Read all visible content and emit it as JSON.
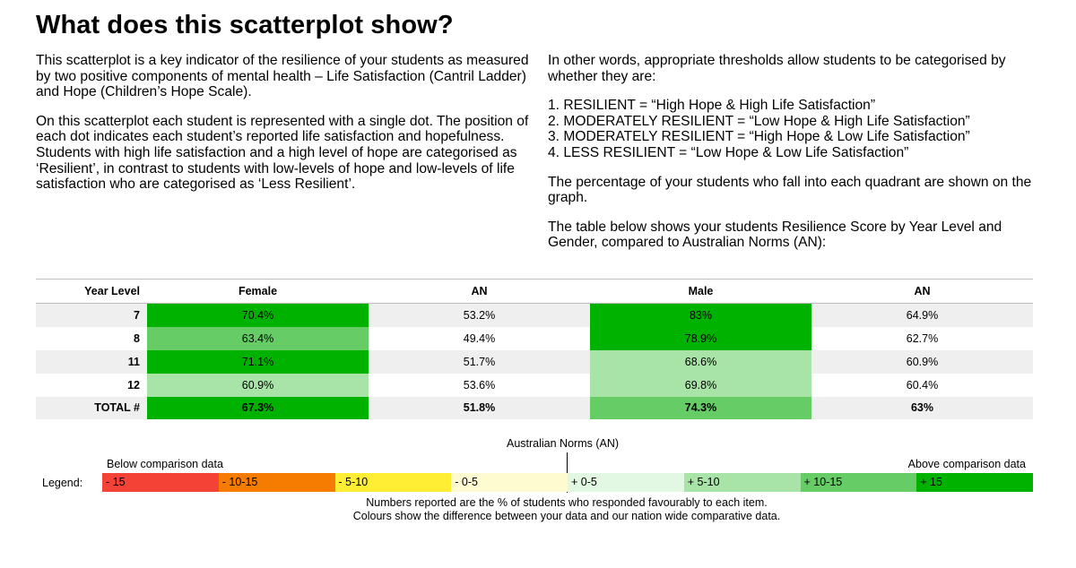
{
  "title": "What does this scatterplot show?",
  "left_column": {
    "p1": "This scatterplot is a key indicator of the resilience of your students as measured by two positive components of mental health – Life Satisfaction (Cantril Ladder) and Hope (Children’s Hope Scale).",
    "p2": "On this scatterplot each student is represented with a single dot. The position of each dot indicates each student’s reported life satisfaction and hopefulness. Students with high life satisfaction and a high level of hope are categorised as ‘Resilient’, in contrast to students with low-levels of hope and low-levels of life satisfaction who are categorised as ‘Less Resilient’."
  },
  "right_column": {
    "intro": "In other words, appropriate thresholds allow students to be categorised by whether they are:",
    "items": [
      "1. RESILIENT = “High Hope & High Life Satisfaction”",
      "2. MODERATELY RESILIENT = “Low Hope & High Life Satisfaction”",
      "3. MODERATELY RESILIENT = “High Hope & Low Life Satisfaction”",
      "4. LESS RESILIENT = “Low Hope & Low Life Satisfaction”"
    ],
    "p_percentage": "The percentage of your students who fall into each quadrant are shown on the graph.",
    "p_table": "The table below shows your students Resilience Score by Year Level and Gender, compared to Australian Norms (AN):"
  },
  "table": {
    "headers": [
      "Year Level",
      "Female",
      "AN",
      "Male",
      "AN"
    ],
    "rows": [
      {
        "year": "7",
        "female": "70.4%",
        "female_color": "#00b200",
        "an_f": "53.2%",
        "male": "83%",
        "male_color": "#00b200",
        "an_m": "64.9%"
      },
      {
        "year": "8",
        "female": "63.4%",
        "female_color": "#66cd66",
        "an_f": "49.4%",
        "male": "78.9%",
        "male_color": "#00b200",
        "an_m": "62.7%"
      },
      {
        "year": "11",
        "female": "71.1%",
        "female_color": "#00b200",
        "an_f": "51.7%",
        "male": "68.6%",
        "male_color": "#a8e3a8",
        "an_m": "60.9%"
      },
      {
        "year": "12",
        "female": "60.9%",
        "female_color": "#a8e3a8",
        "an_f": "53.6%",
        "male": "69.8%",
        "male_color": "#a8e3a8",
        "an_m": "60.4%"
      }
    ],
    "total": {
      "year": "TOTAL #",
      "female": "67.3%",
      "female_color": "#00b200",
      "an_f": "51.8%",
      "male": "74.3%",
      "male_color": "#66cd66",
      "an_m": "63%"
    }
  },
  "legend": {
    "an_label": "Australian Norms (AN)",
    "below_label": "Below comparison data",
    "above_label": "Above comparison data",
    "legend_label": "Legend:",
    "segments": [
      {
        "label": "- 15",
        "color": "#f44336"
      },
      {
        "label": "- 10-15",
        "color": "#f57c00"
      },
      {
        "label": "- 5-10",
        "color": "#ffee33"
      },
      {
        "label": "- 0-5",
        "color": "#fffbd0"
      },
      {
        "label": "+ 0-5",
        "color": "#e3f8e3"
      },
      {
        "label": "+ 5-10",
        "color": "#a8e3a8"
      },
      {
        "label": "+ 10-15",
        "color": "#66cd66"
      },
      {
        "label": "+ 15",
        "color": "#00b200"
      }
    ],
    "note_line1": "Numbers reported are the % of students who responded favourably to each item.",
    "note_line2": "Colours show the difference between your data and our nation wide comparative data."
  }
}
